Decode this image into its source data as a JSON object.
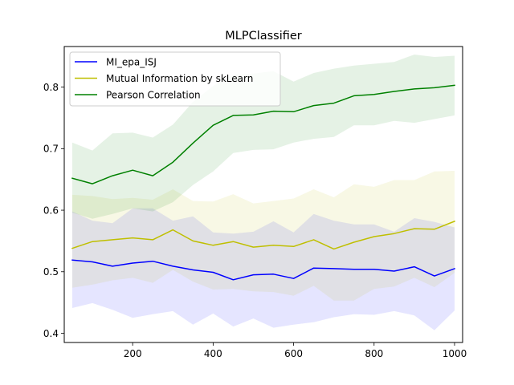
{
  "chart_data": {
    "type": "line",
    "title": "MLPClassifier",
    "xlabel": "",
    "ylabel": "",
    "xlim": [
      30,
      1020
    ],
    "ylim": [
      0.385,
      0.866
    ],
    "xticks": [
      200,
      400,
      600,
      800,
      1000
    ],
    "yticks": [
      0.4,
      0.5,
      0.6,
      0.7,
      0.8
    ],
    "grid": false,
    "legend_position": "top-left",
    "x": [
      50,
      100,
      150,
      200,
      250,
      300,
      350,
      400,
      450,
      500,
      550,
      600,
      650,
      700,
      750,
      800,
      850,
      900,
      950,
      1000
    ],
    "series": [
      {
        "name": "MI_epa_ISJ",
        "color": "#0000ff",
        "band_color": "#0000ff",
        "values": [
          0.519,
          0.516,
          0.509,
          0.514,
          0.517,
          0.509,
          0.503,
          0.499,
          0.487,
          0.495,
          0.496,
          0.489,
          0.506,
          0.505,
          0.504,
          0.504,
          0.501,
          0.508,
          0.493,
          0.505
        ],
        "lower": [
          0.441,
          0.449,
          0.438,
          0.425,
          0.431,
          0.436,
          0.414,
          0.432,
          0.411,
          0.424,
          0.409,
          0.414,
          0.418,
          0.426,
          0.431,
          0.43,
          0.436,
          0.429,
          0.405,
          0.437
        ],
        "upper": [
          0.598,
          0.583,
          0.579,
          0.603,
          0.603,
          0.583,
          0.59,
          0.564,
          0.562,
          0.565,
          0.582,
          0.564,
          0.594,
          0.583,
          0.577,
          0.577,
          0.565,
          0.587,
          0.581,
          0.572
        ]
      },
      {
        "name": "Mutual Information by skLearn",
        "color": "#bfbf00",
        "band_color": "#bfbf00",
        "values": [
          0.538,
          0.549,
          0.552,
          0.555,
          0.552,
          0.568,
          0.55,
          0.543,
          0.549,
          0.54,
          0.543,
          0.541,
          0.552,
          0.537,
          0.548,
          0.557,
          0.562,
          0.57,
          0.569,
          0.582
        ],
        "lower": [
          0.474,
          0.479,
          0.486,
          0.49,
          0.482,
          0.503,
          0.484,
          0.471,
          0.472,
          0.468,
          0.467,
          0.461,
          0.477,
          0.453,
          0.453,
          0.472,
          0.476,
          0.49,
          0.475,
          0.498
        ],
        "upper": [
          0.625,
          0.623,
          0.618,
          0.62,
          0.617,
          0.634,
          0.615,
          0.614,
          0.626,
          0.611,
          0.615,
          0.619,
          0.634,
          0.621,
          0.642,
          0.638,
          0.649,
          0.649,
          0.663,
          0.664
        ]
      },
      {
        "name": "Pearson Correlation",
        "color": "#008000",
        "band_color": "#008000",
        "values": [
          0.652,
          0.643,
          0.656,
          0.665,
          0.656,
          0.678,
          0.709,
          0.738,
          0.754,
          0.755,
          0.761,
          0.76,
          0.77,
          0.774,
          0.786,
          0.788,
          0.793,
          0.797,
          0.799,
          0.803
        ],
        "lower": [
          0.596,
          0.586,
          0.594,
          0.603,
          0.598,
          0.613,
          0.641,
          0.663,
          0.693,
          0.698,
          0.699,
          0.71,
          0.716,
          0.719,
          0.738,
          0.738,
          0.745,
          0.742,
          0.748,
          0.754
        ],
        "upper": [
          0.71,
          0.697,
          0.725,
          0.726,
          0.718,
          0.739,
          0.776,
          0.802,
          0.82,
          0.822,
          0.826,
          0.809,
          0.823,
          0.83,
          0.835,
          0.838,
          0.841,
          0.853,
          0.849,
          0.851
        ]
      }
    ]
  }
}
